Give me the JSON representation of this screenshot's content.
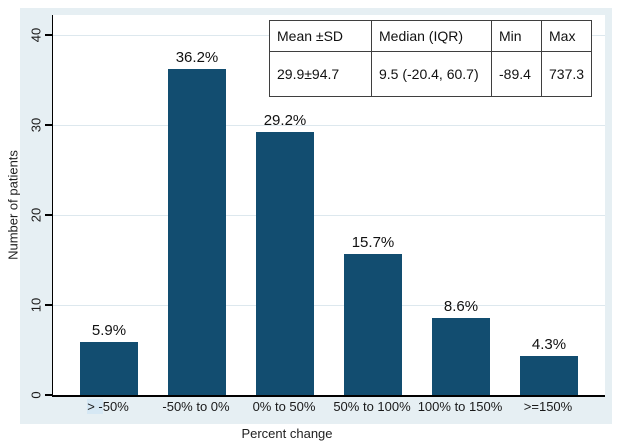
{
  "chart_data": {
    "type": "bar",
    "title": "",
    "xlabel": "Percent change",
    "ylabel": "Number of patients",
    "categories": [
      "> -50%",
      "-50% to 0%",
      "0% to 50%",
      "50% to 100%",
      "100% to 150%",
      ">=150%"
    ],
    "values": [
      5.9,
      36.2,
      29.2,
      15.7,
      8.6,
      4.3
    ],
    "bar_labels": [
      "5.9%",
      "36.2%",
      "29.2%",
      "15.7%",
      "8.6%",
      "4.3%"
    ],
    "yticks": [
      0,
      10,
      20,
      30,
      40
    ],
    "ylim": [
      0,
      42.2
    ],
    "grid": true,
    "legend": "none",
    "bar_color": "#124d70",
    "selection_highlight": {
      "category_index": 0,
      "prefix_chars": 3
    }
  },
  "stats_table": {
    "headers": [
      "Mean ±SD",
      "Median (IQR)",
      "Min",
      "Max"
    ],
    "values": [
      "29.9±94.7",
      "9.5 (-20.4, 60.7)",
      "-89.4",
      "737.3"
    ]
  },
  "colors": {
    "graph_background": "#e6eff3",
    "plot_background": "#ffffff",
    "gridline": "#dde8ee",
    "bar": "#124d70",
    "axis": "#000000",
    "text": "#1a1a1a",
    "highlight": "#d6e8f4"
  }
}
